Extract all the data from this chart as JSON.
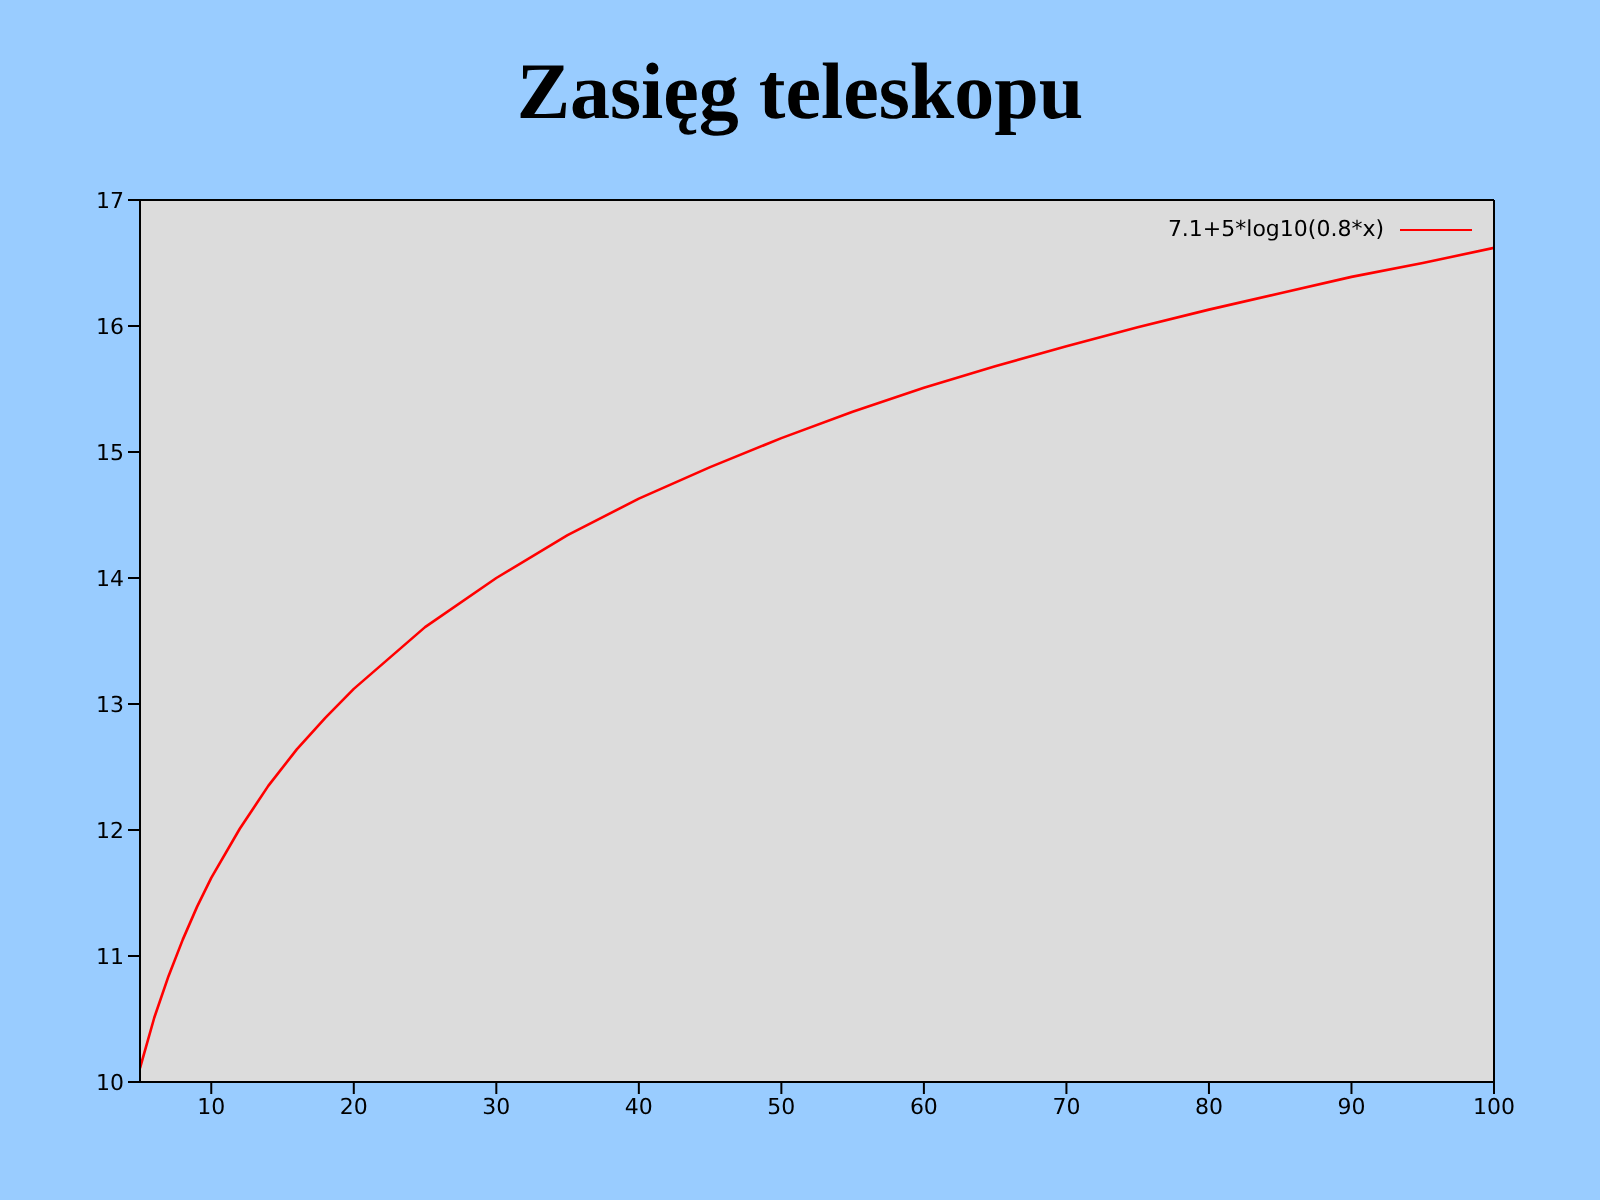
{
  "chart_data": {
    "type": "line",
    "title": "Zasięg teleskopu",
    "x": [
      5,
      6,
      7,
      8,
      9,
      10,
      12,
      14,
      16,
      18,
      20,
      25,
      30,
      35,
      40,
      45,
      50,
      55,
      60,
      65,
      70,
      75,
      80,
      85,
      90,
      95,
      100
    ],
    "series": [
      {
        "name": "7.1+5*log10(0.8*x)",
        "color": "#ff0000",
        "values": [
          10.11,
          10.51,
          10.84,
          11.13,
          11.39,
          11.62,
          12.01,
          12.35,
          12.64,
          12.89,
          13.12,
          13.61,
          14.0,
          14.34,
          14.63,
          14.88,
          15.11,
          15.32,
          15.51,
          15.68,
          15.84,
          15.99,
          16.13,
          16.26,
          16.39,
          16.5,
          16.62
        ]
      }
    ],
    "xlim": [
      5,
      100
    ],
    "xticks": [
      10,
      20,
      30,
      40,
      50,
      60,
      70,
      80,
      90,
      100
    ],
    "ylim": [
      10,
      17
    ],
    "yticks": [
      10,
      11,
      12,
      13,
      14,
      15,
      16,
      17
    ],
    "legend": "top right",
    "marker": "none",
    "line_style": "solid"
  }
}
